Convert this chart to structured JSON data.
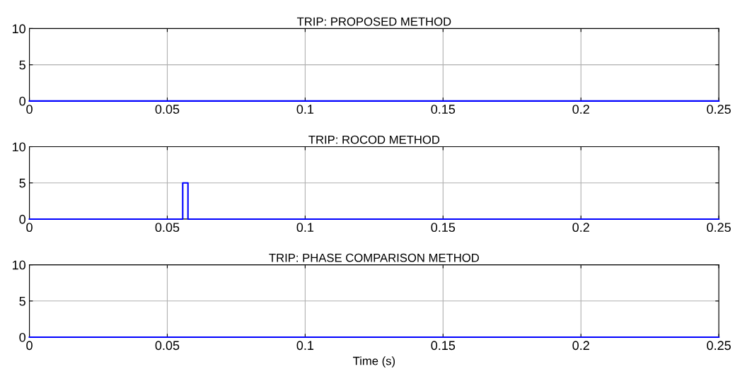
{
  "chart_data": [
    {
      "type": "line",
      "title": "TRIP: PROPOSED METHOD",
      "series": [
        {
          "color": "#0000ff",
          "x": [
            0,
            0.25
          ],
          "values": [
            0,
            0
          ]
        }
      ],
      "xlim": [
        0,
        0.25
      ],
      "xticks": [
        0,
        0.05,
        0.1,
        0.15,
        0.2,
        0.25
      ],
      "ylim": [
        0,
        10
      ],
      "yticks": [
        0,
        5,
        10
      ],
      "grid": true
    },
    {
      "type": "line",
      "title": "TRIP: ROCOD METHOD",
      "series": [
        {
          "color": "#0000ff",
          "x": [
            0,
            0.0556,
            0.0556,
            0.0575,
            0.0575,
            0.25
          ],
          "values": [
            0,
            0,
            5,
            5,
            0,
            0
          ]
        }
      ],
      "xlim": [
        0,
        0.25
      ],
      "xticks": [
        0,
        0.05,
        0.1,
        0.15,
        0.2,
        0.25
      ],
      "ylim": [
        0,
        10
      ],
      "yticks": [
        0,
        5,
        10
      ],
      "grid": true
    },
    {
      "type": "line",
      "title": "TRIP: PHASE COMPARISON METHOD",
      "xlabel": "Time (s)",
      "series": [
        {
          "color": "#0000ff",
          "x": [
            0,
            0.25
          ],
          "values": [
            0,
            0
          ]
        }
      ],
      "xlim": [
        0,
        0.25
      ],
      "xticks": [
        0,
        0.05,
        0.1,
        0.15,
        0.2,
        0.25
      ],
      "ylim": [
        0,
        10
      ],
      "yticks": [
        0,
        5,
        10
      ],
      "grid": true
    }
  ]
}
